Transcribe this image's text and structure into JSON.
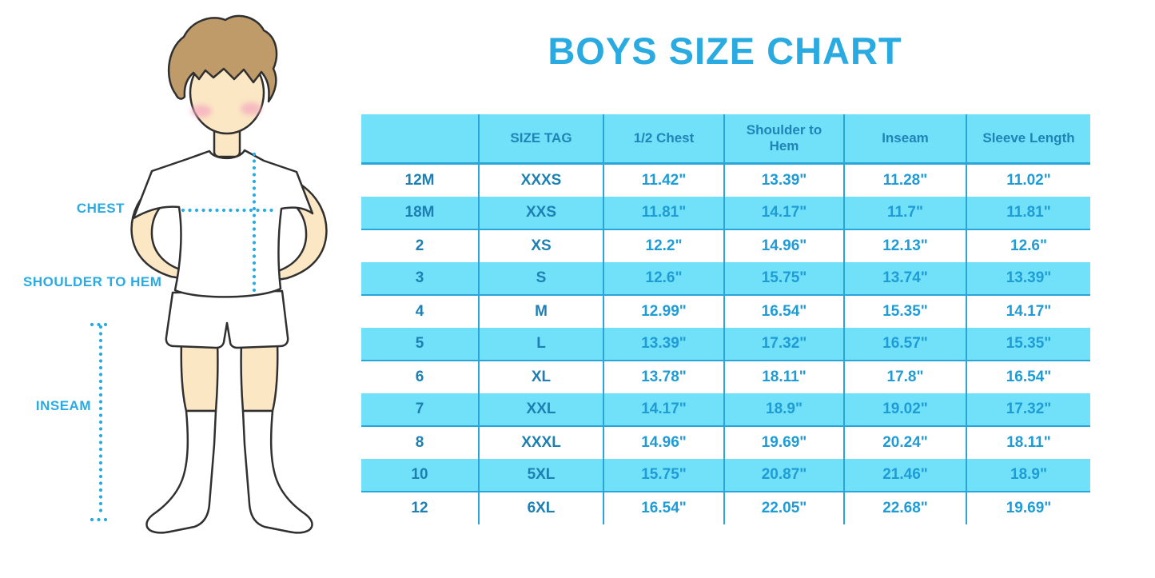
{
  "title": "BOYS SIZE CHART",
  "figure": {
    "labels": {
      "chest": "CHEST",
      "shoulder_to_hem": "SHOULDER TO HEM",
      "inseam": "INSEAM"
    }
  },
  "colors": {
    "accent": "#29ABE2",
    "band": "#70E1F9",
    "divider": "#2AA5D9",
    "header-text": "#2084B6",
    "label-text": "#1E7FB3",
    "value-text": "#1F9CD6",
    "skin": "#FBE7C4",
    "hair": "#BE9B68",
    "blush": "#F5ABC0",
    "outline": "#303030"
  },
  "chart_data": {
    "type": "table",
    "title": "BOYS SIZE CHART",
    "columns": [
      "",
      "SIZE TAG",
      "1/2 Chest",
      "Shoulder to Hem",
      "Inseam",
      "Sleeve Length"
    ],
    "rows": [
      [
        "12M",
        "XXXS",
        "11.42\"",
        "13.39\"",
        "11.28\"",
        "11.02\""
      ],
      [
        "18M",
        "XXS",
        "11.81\"",
        "14.17\"",
        "11.7\"",
        "11.81\""
      ],
      [
        "2",
        "XS",
        "12.2\"",
        "14.96\"",
        "12.13\"",
        "12.6\""
      ],
      [
        "3",
        "S",
        "12.6\"",
        "15.75\"",
        "13.74\"",
        "13.39\""
      ],
      [
        "4",
        "M",
        "12.99\"",
        "16.54\"",
        "15.35\"",
        "14.17\""
      ],
      [
        "5",
        "L",
        "13.39\"",
        "17.32\"",
        "16.57\"",
        "15.35\""
      ],
      [
        "6",
        "XL",
        "13.78\"",
        "18.11\"",
        "17.8\"",
        "16.54\""
      ],
      [
        "7",
        "XXL",
        "14.17\"",
        "18.9\"",
        "19.02\"",
        "17.32\""
      ],
      [
        "8",
        "XXXL",
        "14.96\"",
        "19.69\"",
        "20.24\"",
        "18.11\""
      ],
      [
        "10",
        "5XL",
        "15.75\"",
        "20.87\"",
        "21.46\"",
        "18.9\""
      ],
      [
        "12",
        "6XL",
        "16.54\"",
        "22.05\"",
        "22.68\"",
        "19.69\""
      ]
    ],
    "row_stripe_pattern": "alternating white / cyan starting white",
    "legend_position": "none",
    "grid": "column dividers + stripe bands"
  }
}
